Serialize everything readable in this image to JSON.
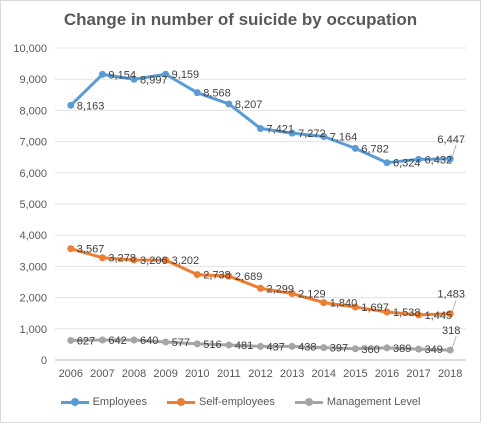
{
  "chart_data": {
    "type": "line",
    "title": "Change in number of suicide by occupation",
    "xlabel": "",
    "ylabel": "",
    "categories": [
      "2006",
      "2007",
      "2008",
      "2009",
      "2010",
      "2011",
      "2012",
      "2013",
      "2014",
      "2015",
      "2016",
      "2017",
      "2018"
    ],
    "ylim": [
      0,
      10000
    ],
    "yticks": [
      0,
      1000,
      2000,
      3000,
      4000,
      5000,
      6000,
      7000,
      8000,
      9000,
      10000
    ],
    "ytick_labels": [
      "0",
      "1,000",
      "2,000",
      "3,000",
      "4,000",
      "5,000",
      "6,000",
      "7,000",
      "8,000",
      "9,000",
      "10,000"
    ],
    "grid": true,
    "legend_position": "bottom",
    "series": [
      {
        "name": "Employees",
        "color": "#5b9bd5",
        "values": [
          8163,
          9154,
          8997,
          9159,
          8568,
          8207,
          7421,
          7272,
          7164,
          6782,
          6324,
          6432,
          6447
        ],
        "labels": [
          "8,163",
          "9,154",
          "8,997",
          "9,159",
          "8,568",
          "8,207",
          "7,421",
          "7,272",
          "7,164",
          "6,782",
          "6,324",
          "6,432",
          "6,447"
        ]
      },
      {
        "name": "Self-employees",
        "color": "#ed7d31",
        "values": [
          3567,
          3278,
          3206,
          3202,
          2738,
          2689,
          2299,
          2129,
          1840,
          1697,
          1538,
          1445,
          1483
        ],
        "labels": [
          "3,567",
          "3,278",
          "3,206",
          "3,202",
          "2,738",
          "2,689",
          "2,299",
          "2,129",
          "1,840",
          "1,697",
          "1,538",
          "1,445",
          "1,483"
        ]
      },
      {
        "name": "Management Level",
        "color": "#a5a5a5",
        "values": [
          627,
          642,
          640,
          577,
          516,
          481,
          437,
          438,
          397,
          360,
          389,
          349,
          318
        ],
        "labels": [
          "627",
          "642",
          "640",
          "577",
          "516",
          "481",
          "437",
          "438",
          "397",
          "360",
          "389",
          "349",
          "318"
        ]
      }
    ]
  }
}
